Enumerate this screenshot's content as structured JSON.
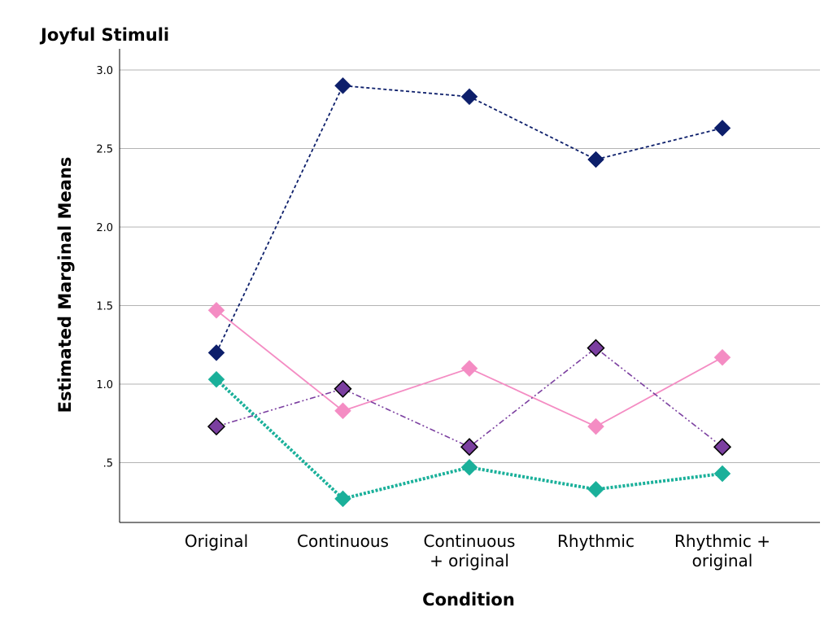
{
  "chart_data": {
    "type": "line",
    "title": "Joyful Stimuli",
    "xlabel": "Condition",
    "ylabel": "Estimated Marginal Means",
    "categories": [
      [
        "Original"
      ],
      [
        "Continuous"
      ],
      [
        "Continuous",
        "+ original"
      ],
      [
        "Rhythmic"
      ],
      [
        "Rhythmic +",
        "original"
      ]
    ],
    "yticks": [
      {
        "value": 0.5,
        "label": ".5"
      },
      {
        "value": 1.0,
        "label": "1.0"
      },
      {
        "value": 1.5,
        "label": "1.5"
      },
      {
        "value": 2.0,
        "label": "2.0"
      },
      {
        "value": 2.5,
        "label": "2.5"
      },
      {
        "value": 3.0,
        "label": "3.0"
      }
    ],
    "ylim": [
      0.12,
      3.15
    ],
    "grid": true,
    "series": [
      {
        "values": [
          1.2,
          2.9,
          2.83,
          2.43,
          2.63
        ],
        "color": "#0d1f6b",
        "line": "dotted",
        "marker_outline": false
      },
      {
        "values": [
          1.47,
          0.83,
          1.1,
          0.73,
          1.17
        ],
        "color": "#f48cc3",
        "line": "solid",
        "marker_outline": false
      },
      {
        "values": [
          0.73,
          0.97,
          0.6,
          1.23,
          0.6
        ],
        "color": "#7b3fa0",
        "line": "dash-dot-dot",
        "marker_outline": true
      },
      {
        "values": [
          1.03,
          0.27,
          0.47,
          0.33,
          0.43
        ],
        "color": "#1ab09a",
        "line": "thick-dotted",
        "marker_outline": false
      }
    ]
  }
}
